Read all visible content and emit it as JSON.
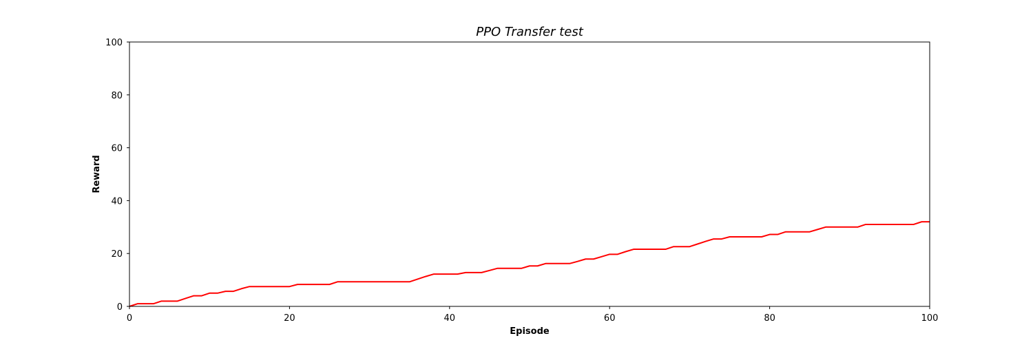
{
  "chart_data": {
    "type": "line",
    "title": "PPO Transfer test",
    "xlabel": "Episode",
    "ylabel": "Reward",
    "xlim": [
      0,
      100
    ],
    "ylim": [
      0,
      100
    ],
    "xticks": [
      0,
      20,
      40,
      60,
      80,
      100
    ],
    "yticks": [
      0,
      20,
      40,
      60,
      80,
      100
    ],
    "grid": false,
    "series": [
      {
        "color": "#ff0000",
        "x": [
          0,
          1,
          2,
          3,
          4,
          5,
          6,
          7,
          8,
          9,
          10,
          11,
          12,
          13,
          14,
          15,
          16,
          17,
          18,
          19,
          20,
          21,
          22,
          23,
          24,
          25,
          26,
          27,
          28,
          29,
          30,
          31,
          32,
          33,
          34,
          35,
          36,
          37,
          38,
          39,
          40,
          41,
          42,
          43,
          44,
          45,
          46,
          47,
          48,
          49,
          50,
          51,
          52,
          53,
          54,
          55,
          56,
          57,
          58,
          59,
          60,
          61,
          62,
          63,
          64,
          65,
          66,
          67,
          68,
          69,
          70,
          71,
          72,
          73,
          74,
          75,
          76,
          77,
          78,
          79,
          80,
          81,
          82,
          83,
          84,
          85,
          86,
          87,
          88,
          89,
          90,
          91,
          92,
          93,
          94,
          95,
          96,
          97,
          98,
          99,
          100
        ],
        "y": [
          0,
          1,
          1,
          1,
          2,
          2,
          2,
          3,
          4,
          4,
          5,
          5,
          5.7,
          5.7,
          6.7,
          7.5,
          7.5,
          7.5,
          7.5,
          7.5,
          7.5,
          8.3,
          8.3,
          8.3,
          8.3,
          8.3,
          9.3,
          9.3,
          9.3,
          9.3,
          9.3,
          9.3,
          9.3,
          9.3,
          9.3,
          9.3,
          10.3,
          11.3,
          12.2,
          12.2,
          12.2,
          12.2,
          12.8,
          12.8,
          12.8,
          13.6,
          14.4,
          14.4,
          14.4,
          14.4,
          15.3,
          15.3,
          16.2,
          16.2,
          16.2,
          16.2,
          17.0,
          17.9,
          17.9,
          18.8,
          19.7,
          19.7,
          20.7,
          21.6,
          21.6,
          21.6,
          21.6,
          21.6,
          22.6,
          22.6,
          22.6,
          23.6,
          24.6,
          25.5,
          25.5,
          26.3,
          26.3,
          26.3,
          26.3,
          26.3,
          27.2,
          27.2,
          28.2,
          28.2,
          28.2,
          28.2,
          29.1,
          30.0,
          30.0,
          30.0,
          30.0,
          30.0,
          31.0,
          31.0,
          31.0,
          31.0,
          31.0,
          31.0,
          31.0,
          32.0,
          32.0
        ]
      }
    ]
  }
}
